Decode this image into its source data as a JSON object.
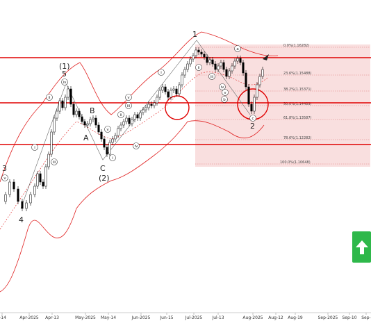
{
  "chart_data": {
    "type": "candlestick",
    "title": "",
    "xlabel": "",
    "ylabel": "",
    "x_ticks": [
      "r-14",
      "Apr-2025",
      "Apr-13",
      "May-2025",
      "May-14",
      "Jun-2025",
      "Jun-15",
      "Jul-2025",
      "Jul-13",
      "Aug-2025",
      "Aug-12",
      "Aug-19",
      "Sep-2025",
      "Sep-10",
      "Sep-"
    ],
    "fib_levels": [
      {
        "label": "0.0%(1.16282)",
        "level": 0.0
      },
      {
        "label": "23.6%(1.15488)",
        "level": 23.6
      },
      {
        "label": "38.2%(1.15371)",
        "level": 38.2
      },
      {
        "label": "50.0%(1.14489)",
        "level": 50.0
      },
      {
        "label": "61.8%(1.13587)",
        "level": 61.8
      },
      {
        "label": "78.6%(1.12282)",
        "level": 78.6
      },
      {
        "label": "100.0%(1.10648)",
        "level": 100.0
      }
    ],
    "horizontal_lines": 3,
    "wave_labels": [
      "3",
      "4",
      "(1)",
      "5",
      "B",
      "A",
      "C",
      "(2)",
      "1",
      "2"
    ],
    "minor_labels": [
      "v",
      "i",
      "ii",
      "iii",
      "iv",
      "v",
      "i",
      "ii",
      "iii",
      "iv",
      "v",
      "i",
      "ii",
      "iii",
      "iv",
      "v",
      "a",
      "b",
      "c"
    ],
    "colors": {
      "candle": "#000000",
      "band": "#e02020",
      "hline": "#e00000",
      "fib_zone": "#f7d4d4",
      "button": "#2eb84a"
    },
    "grid": false
  },
  "controls": {
    "buy_icon": "arrow-up-icon"
  }
}
